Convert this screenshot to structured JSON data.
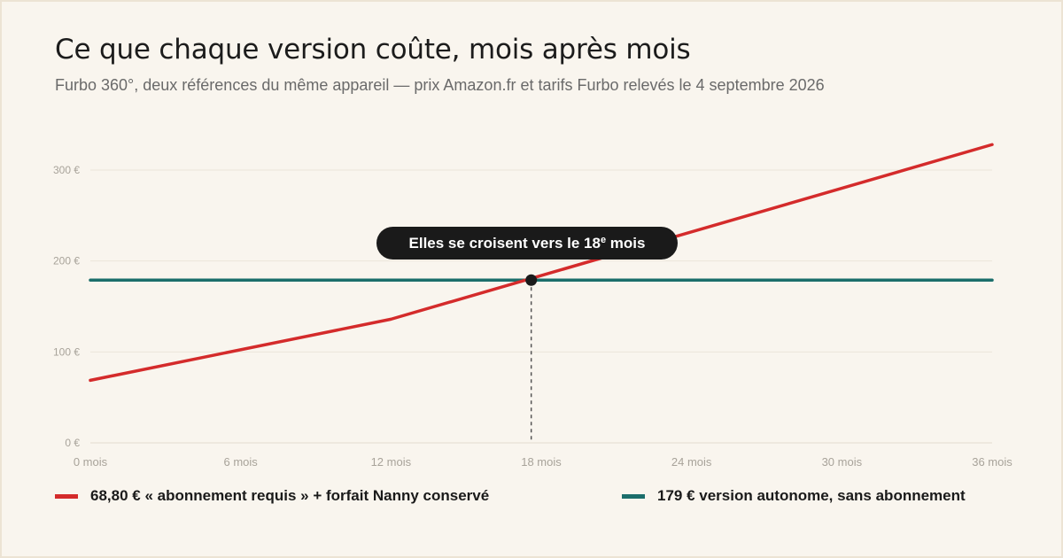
{
  "header": {
    "title": "Ce que chaque version coûte, mois après mois",
    "subtitle": "Furbo 360°, deux références du même appareil — prix Amazon.fr et tarifs Furbo relevés le 4 septembre 2026"
  },
  "chart_data": {
    "type": "line",
    "x_tick_labels": [
      "0 mois",
      "6 mois",
      "12 mois",
      "18 mois",
      "24 mois",
      "30 mois",
      "36 mois"
    ],
    "y_tick_labels": [
      "0 €",
      "100 €",
      "200 €",
      "300 €"
    ],
    "xlim": [
      0,
      36
    ],
    "ylim": [
      0,
      300
    ],
    "grid": true,
    "legend_position": "bottom",
    "series": [
      {
        "name": "68,80 € « abonnement requis » + forfait Nanny conservé",
        "color": "#d42b2b",
        "x": [
          0,
          12,
          36
        ],
        "y": [
          68.8,
          136,
          328
        ]
      },
      {
        "name": "179 € version autonome, sans abonnement",
        "color": "#1b6e6b",
        "x": [
          0,
          36
        ],
        "y": [
          179,
          179
        ]
      }
    ],
    "annotation": {
      "text_main": "Elles se croisent vers le 18",
      "text_sup": "e",
      "text_end": " mois",
      "x": 17.6,
      "y": 179
    }
  }
}
